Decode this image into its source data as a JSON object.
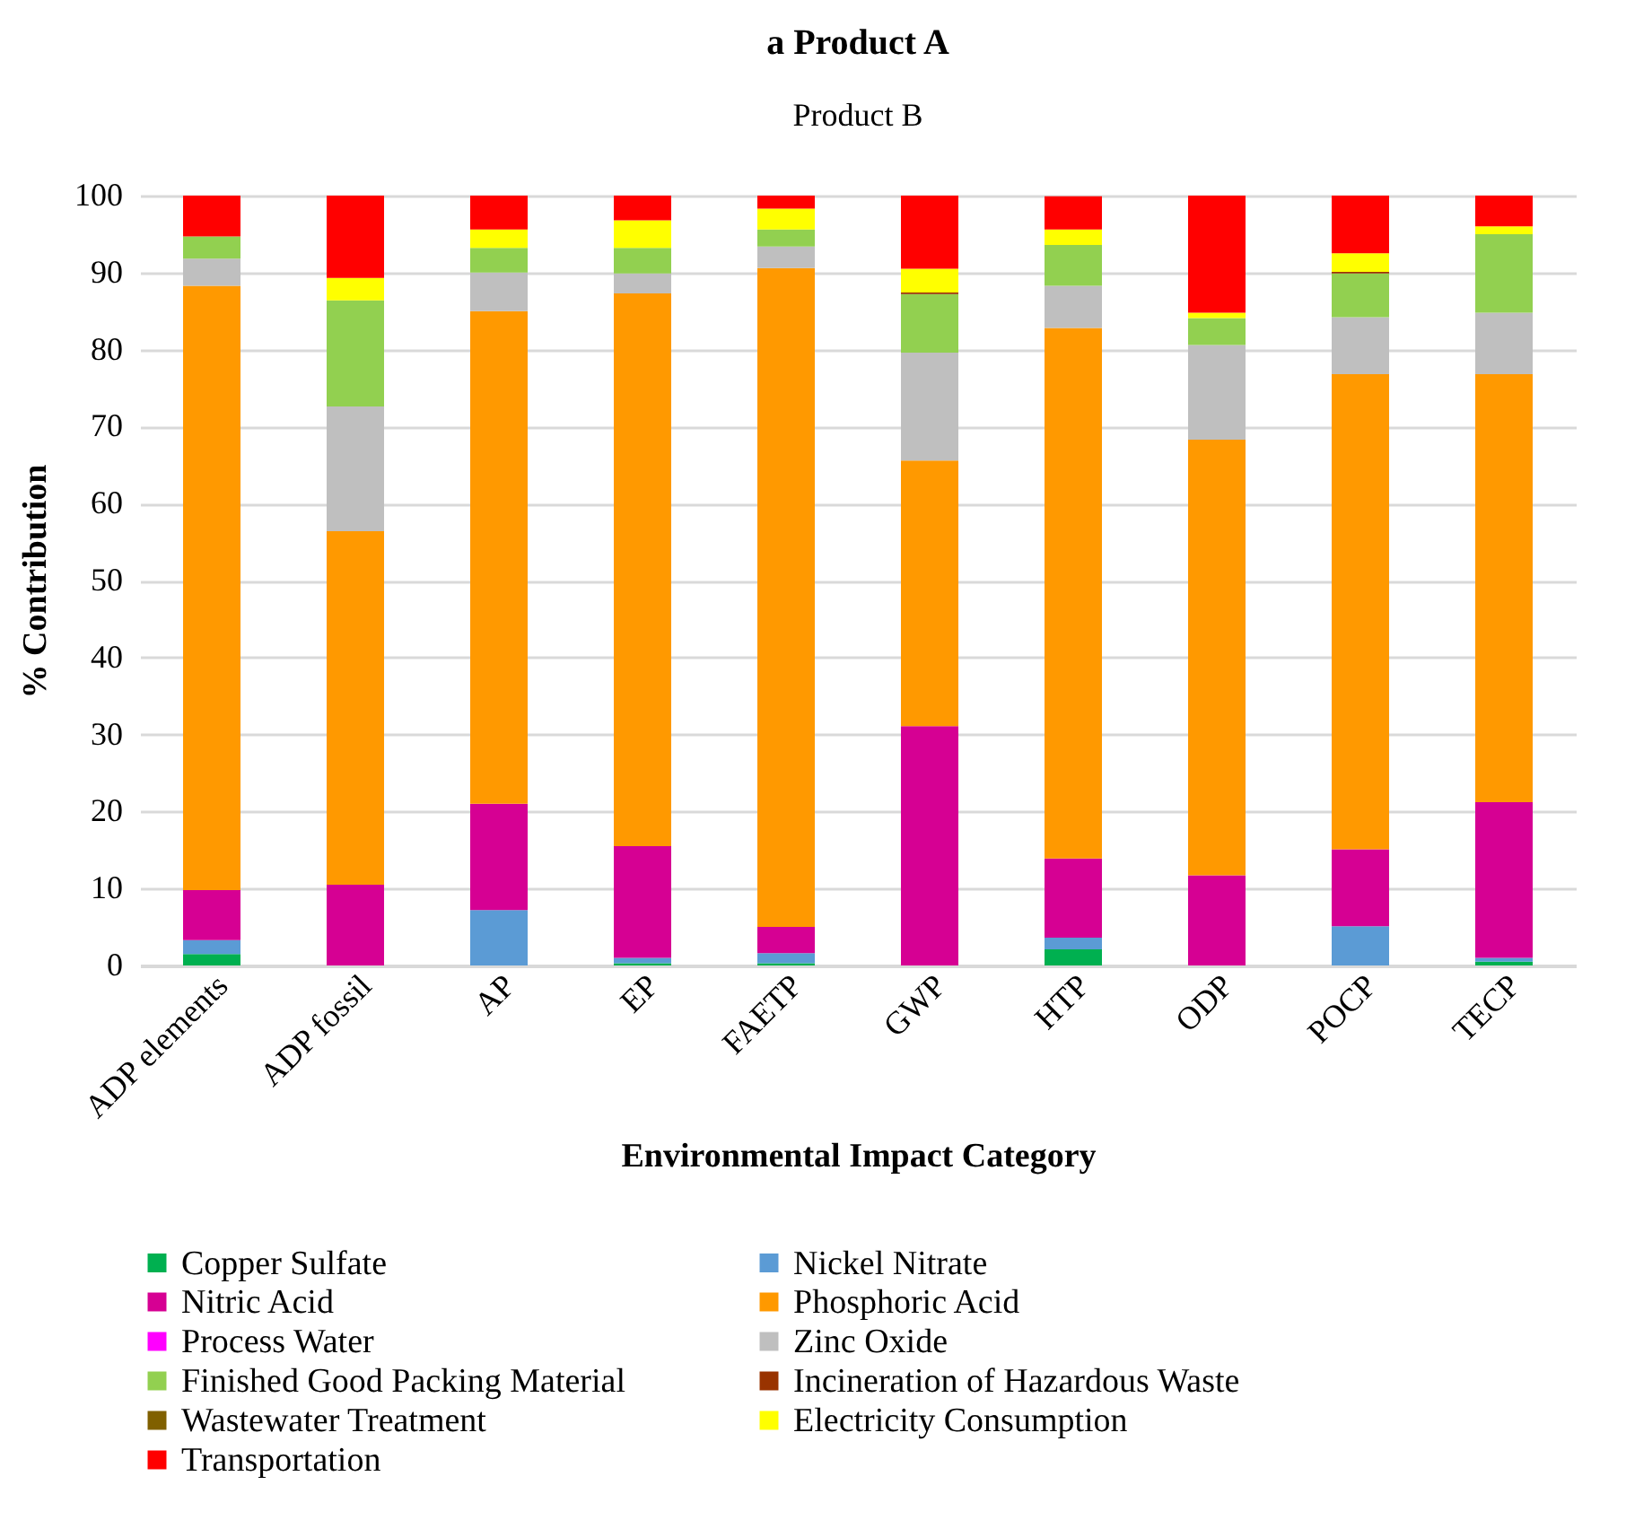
{
  "chart_data": {
    "type": "bar",
    "title": "a Product A",
    "subtitle": "Product B",
    "xlabel": "Environmental Impact Category",
    "ylabel": "% Contribution",
    "stacked": true,
    "grid": "y",
    "legend": "bottom",
    "ylim": [
      0,
      100
    ],
    "yticks": [
      0,
      10,
      20,
      30,
      40,
      50,
      60,
      70,
      80,
      90,
      100
    ],
    "categories": [
      "ADP elements",
      "ADP fossil",
      "AP",
      "EP",
      "FAETP",
      "GWP",
      "HTP",
      "ODP",
      "POCP",
      "TECP"
    ],
    "series": [
      {
        "name": "Copper Sulfate",
        "color": "#00b050",
        "values": [
          1.5,
          0,
          0,
          0.3,
          0.3,
          0,
          2.1,
          0,
          0,
          0.5
        ]
      },
      {
        "name": "Nickel Nitrate",
        "color": "#5b9bd5",
        "values": [
          1.8,
          0,
          7.2,
          0.7,
          1.3,
          0,
          1.5,
          0,
          5.1,
          0.5
        ]
      },
      {
        "name": "Nitric Acid",
        "color": "#d60093",
        "values": [
          6.5,
          10.5,
          13.8,
          14.5,
          3.4,
          31.1,
          10.3,
          11.7,
          10.0,
          20.2
        ]
      },
      {
        "name": "Phosphoric Acid",
        "color": "#ff9900",
        "values": [
          78.5,
          45.9,
          64.0,
          71.8,
          85.6,
          34.5,
          68.9,
          56.6,
          61.7,
          55.6
        ]
      },
      {
        "name": "Process Water",
        "color": "#ff00ff",
        "values": [
          0,
          0,
          0,
          0,
          0,
          0,
          0,
          0,
          0,
          0
        ]
      },
      {
        "name": "Zinc Oxide",
        "color": "#bfbfbf",
        "values": [
          3.5,
          16.2,
          5.0,
          2.6,
          2.8,
          14.0,
          5.5,
          12.3,
          7.4,
          8.0
        ]
      },
      {
        "name": "Finished Good Packing Material",
        "color": "#92d050",
        "values": [
          2.9,
          13.8,
          3.2,
          3.3,
          2.2,
          7.6,
          5.3,
          3.5,
          5.7,
          10.2
        ]
      },
      {
        "name": "Incineration of Hazardous Waste",
        "color": "#993300",
        "values": [
          0,
          0,
          0,
          0,
          0,
          0.2,
          0,
          0,
          0.2,
          0
        ]
      },
      {
        "name": "Wastewater Treatment",
        "color": "#806000",
        "values": [
          0,
          0,
          0,
          0,
          0,
          0,
          0,
          0,
          0,
          0
        ]
      },
      {
        "name": "Electricity Consumption",
        "color": "#ffff00",
        "values": [
          0,
          2.9,
          2.4,
          3.6,
          2.7,
          3.1,
          2.0,
          0.7,
          2.4,
          1.0
        ]
      },
      {
        "name": "Transportation",
        "color": "#ff0000",
        "values": [
          5.3,
          10.7,
          4.4,
          3.2,
          1.7,
          9.5,
          4.3,
          15.2,
          7.5,
          4.0
        ]
      }
    ]
  }
}
